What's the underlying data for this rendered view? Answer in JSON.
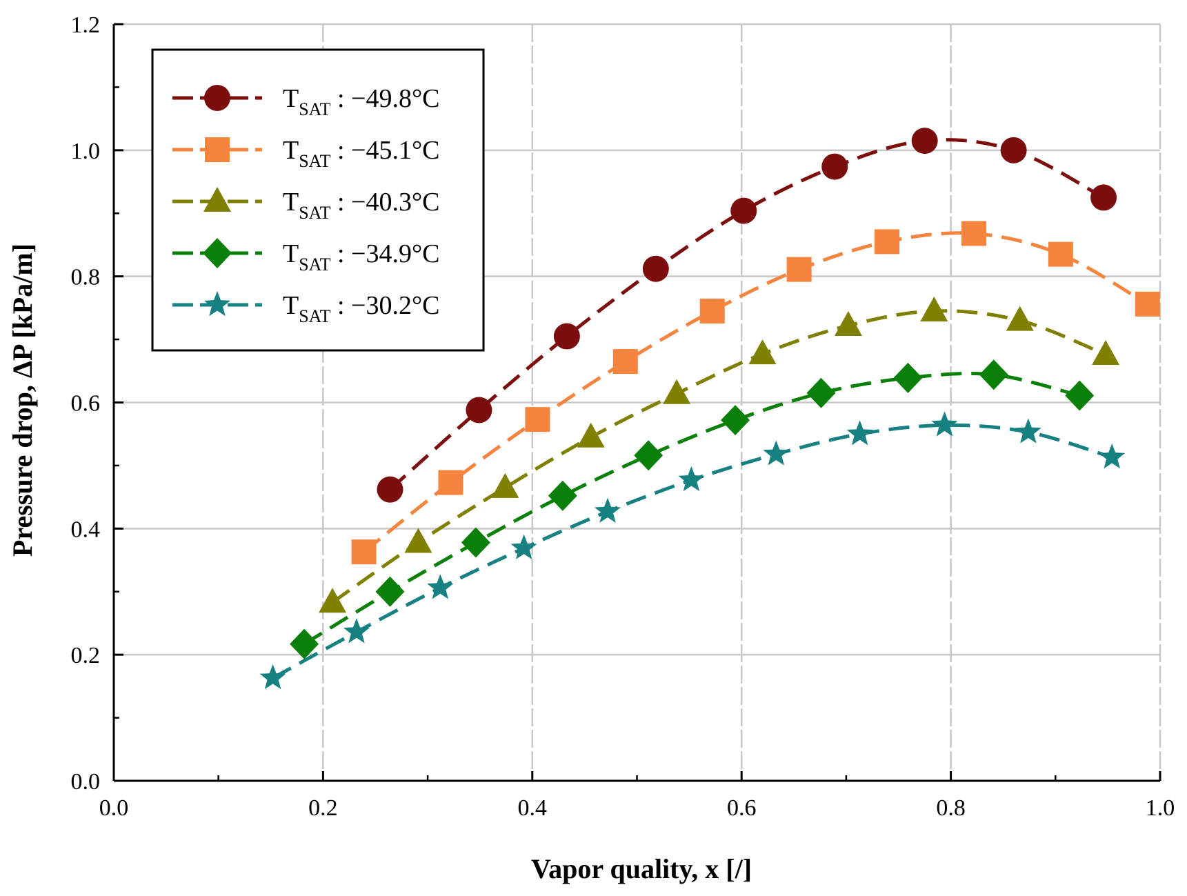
{
  "chart_data": {
    "type": "line",
    "title": "",
    "xlabel": "Vapor quality, x [/]",
    "ylabel": "Pressure drop, ΔP [kPa/m]",
    "xlim": [
      0.0,
      1.0
    ],
    "ylim": [
      0.0,
      1.2
    ],
    "xticks": [
      0.0,
      0.2,
      0.4,
      0.6,
      0.8,
      1.0
    ],
    "yticks": [
      0.0,
      0.2,
      0.4,
      0.6,
      0.8,
      1.0,
      1.2
    ],
    "xtick_labels": [
      "0.0",
      "0.2",
      "0.4",
      "0.6",
      "0.8",
      "1.0"
    ],
    "ytick_labels": [
      "0.0",
      "0.2",
      "0.4",
      "0.6",
      "0.8",
      "1.0",
      "1.2"
    ],
    "grid": true,
    "legend_position": "top-left",
    "series": [
      {
        "name": "T_SAT : −49.8°C",
        "label_main": "T",
        "label_sub": "SAT",
        "label_value": " : −49.8",
        "label_unit": "°C",
        "marker": "circle",
        "color": "#7b0d0d",
        "x": [
          0.264,
          0.349,
          0.433,
          0.518,
          0.602,
          0.689,
          0.775,
          0.86,
          0.946
        ],
        "y": [
          0.462,
          0.588,
          0.705,
          0.812,
          0.904,
          0.974,
          1.015,
          1.0,
          0.925
        ]
      },
      {
        "name": "T_SAT : −45.1°C",
        "label_main": "T",
        "label_sub": "SAT",
        "label_value": " : −45.1",
        "label_unit": "°C",
        "marker": "square",
        "color": "#f5843f",
        "x": [
          0.239,
          0.322,
          0.405,
          0.489,
          0.572,
          0.655,
          0.739,
          0.822,
          0.905,
          0.988
        ],
        "y": [
          0.363,
          0.473,
          0.573,
          0.665,
          0.745,
          0.811,
          0.855,
          0.868,
          0.835,
          0.756
        ]
      },
      {
        "name": "T_SAT : −40.3°C",
        "label_main": "T",
        "label_sub": "SAT",
        "label_value": " : −40.3",
        "label_unit": "°C",
        "marker": "triangle",
        "color": "#808000",
        "x": [
          0.209,
          0.291,
          0.374,
          0.456,
          0.538,
          0.62,
          0.702,
          0.784,
          0.866,
          0.948
        ],
        "y": [
          0.283,
          0.378,
          0.465,
          0.545,
          0.614,
          0.677,
          0.722,
          0.745,
          0.73,
          0.676
        ]
      },
      {
        "name": "T_SAT : −34.9°C",
        "label_main": "T",
        "label_sub": "SAT",
        "label_value": " : −34.9",
        "label_unit": "°C",
        "marker": "diamond",
        "color": "#0a800a",
        "x": [
          0.182,
          0.264,
          0.346,
          0.429,
          0.511,
          0.594,
          0.676,
          0.759,
          0.841,
          0.923
        ],
        "y": [
          0.217,
          0.3,
          0.378,
          0.452,
          0.516,
          0.572,
          0.615,
          0.639,
          0.644,
          0.611
        ]
      },
      {
        "name": "T_SAT : −30.2°C",
        "label_main": "T",
        "label_sub": "SAT",
        "label_value": " : −30.2",
        "label_unit": "°C",
        "marker": "star",
        "color": "#178080",
        "x": [
          0.152,
          0.232,
          0.312,
          0.392,
          0.472,
          0.552,
          0.633,
          0.713,
          0.794,
          0.874,
          0.954
        ],
        "y": [
          0.163,
          0.236,
          0.306,
          0.369,
          0.427,
          0.477,
          0.518,
          0.55,
          0.564,
          0.553,
          0.513
        ]
      }
    ]
  }
}
